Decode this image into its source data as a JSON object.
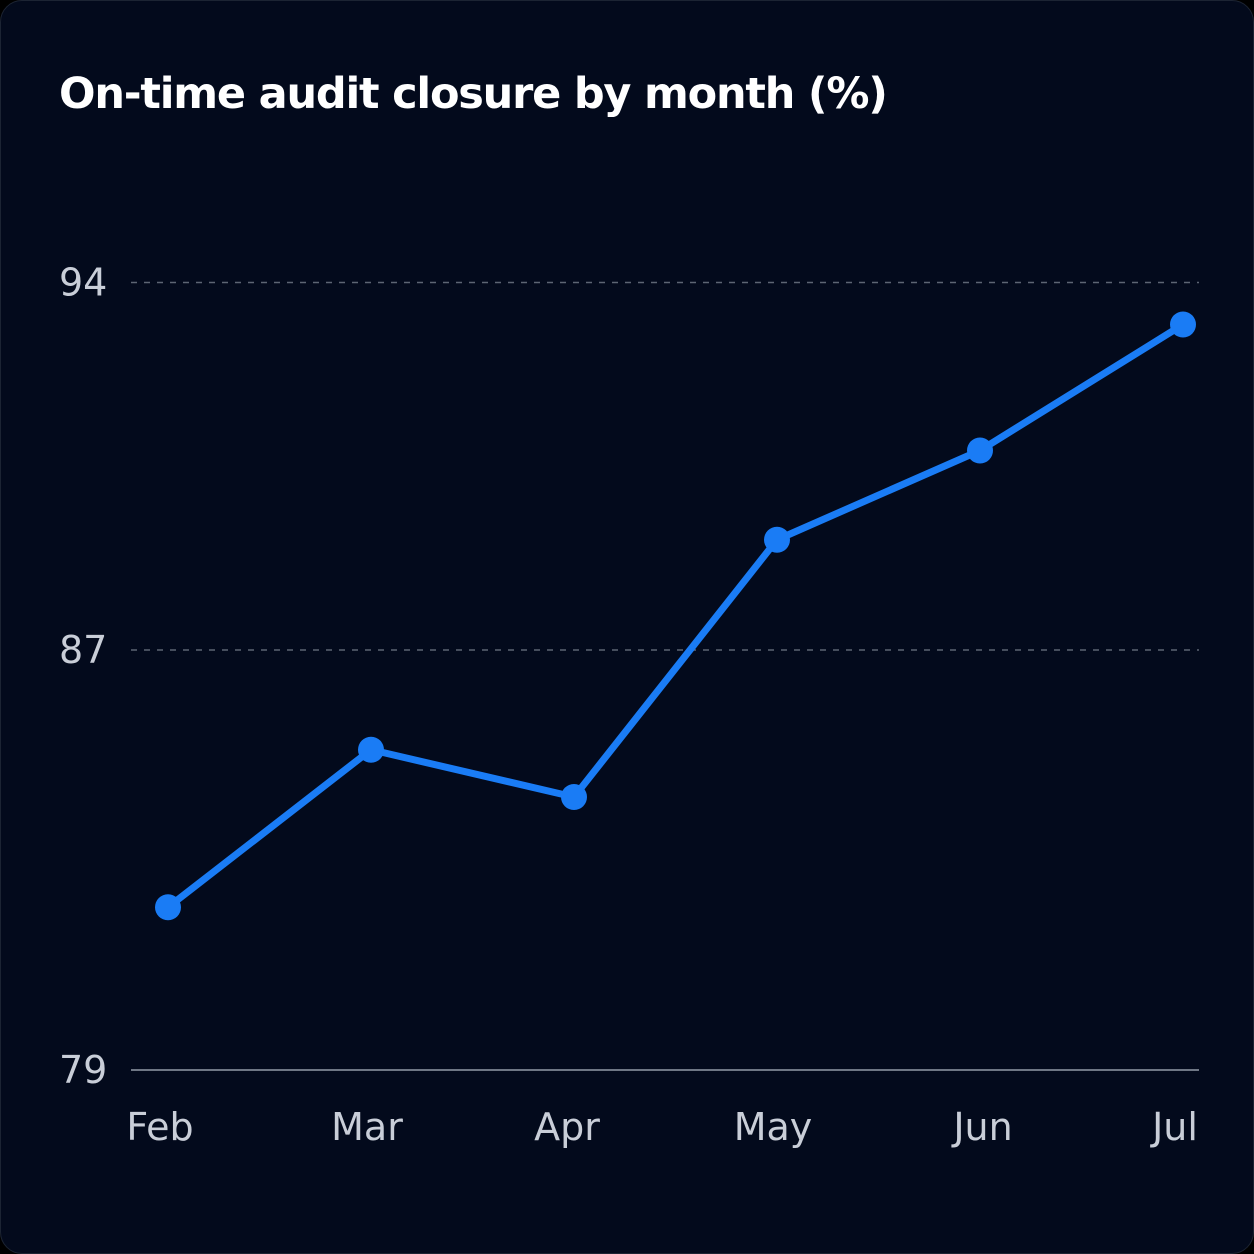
{
  "chart_data": {
    "type": "line",
    "title": "On-time audit closure by month (%)",
    "xlabel": "",
    "ylabel": "",
    "categories": [
      "Feb",
      "Mar",
      "Apr",
      "May",
      "Jun",
      "Jul"
    ],
    "series": [
      {
        "values": [
          82.1,
          85.1,
          84.2,
          89.1,
          90.8,
          93.2
        ]
      }
    ],
    "ylim": [
      79,
      94
    ],
    "yticks": [
      79,
      87,
      94
    ],
    "grid": true,
    "line_color": "#1a7cf5",
    "background_color": "#030a1c"
  }
}
